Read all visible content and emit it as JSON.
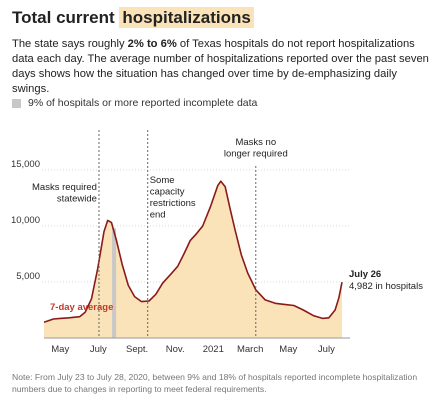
{
  "header": {
    "title_prefix": "Total current",
    "title_highlight": "hospitalizations",
    "desc_part1": "The state says roughly ",
    "desc_bold": "2% to 6%",
    "desc_part2": " of Texas hospitals do not report hospitalizations data each day. The average number of hospitalizations reported over the past seven days shows how the situation has changed over time by de-emphasizing daily swings."
  },
  "legend": {
    "label": "9% of hospitals or more reported incomplete data",
    "color": "#c8c8c8"
  },
  "note": "Note: From July 23 to July 28, 2020, between 9% and 18% of hospitals reported incomplete hospitalization numbers due to changes in reporting to meet federal requirements.",
  "colors": {
    "area_fill": "#fae3b8",
    "line": "#8b1a1a",
    "series_label": "#c0392b",
    "incomplete_band": "#c8c8c8"
  },
  "chart_data": {
    "type": "area",
    "series_name": "7-day average",
    "ylim": [
      0,
      15000
    ],
    "yticks": [
      5000,
      10000,
      15000
    ],
    "ytick_labels": [
      "5,000",
      "10,000",
      "15,000"
    ],
    "xticks": [
      {
        "label": "May",
        "x": "2020-05-01"
      },
      {
        "label": "July",
        "x": "2020-07-01"
      },
      {
        "label": "Sept.",
        "x": "2020-09-01"
      },
      {
        "label": "Nov.",
        "x": "2020-11-01"
      },
      {
        "label": "2021",
        "x": "2021-01-01"
      },
      {
        "label": "March",
        "x": "2021-03-01"
      },
      {
        "label": "May",
        "x": "2021-05-01"
      },
      {
        "label": "July",
        "x": "2021-07-01"
      }
    ],
    "x_range": [
      "2020-04-05",
      "2021-07-26"
    ],
    "incomplete_band": [
      "2020-07-23",
      "2020-07-28"
    ],
    "points": [
      [
        "2020-04-05",
        1400
      ],
      [
        "2020-04-20",
        1700
      ],
      [
        "2020-05-01",
        1750
      ],
      [
        "2020-05-15",
        1800
      ],
      [
        "2020-06-01",
        1900
      ],
      [
        "2020-06-10",
        2300
      ],
      [
        "2020-06-20",
        3500
      ],
      [
        "2020-06-30",
        6200
      ],
      [
        "2020-07-10",
        9500
      ],
      [
        "2020-07-16",
        10500
      ],
      [
        "2020-07-22",
        10300
      ],
      [
        "2020-07-30",
        8700
      ],
      [
        "2020-08-08",
        6600
      ],
      [
        "2020-08-18",
        4700
      ],
      [
        "2020-08-28",
        3700
      ],
      [
        "2020-09-08",
        3250
      ],
      [
        "2020-09-20",
        3300
      ],
      [
        "2020-10-01",
        3900
      ],
      [
        "2020-10-12",
        4900
      ],
      [
        "2020-10-25",
        5700
      ],
      [
        "2020-11-05",
        6400
      ],
      [
        "2020-11-15",
        7500
      ],
      [
        "2020-11-25",
        8700
      ],
      [
        "2020-12-05",
        9300
      ],
      [
        "2020-12-15",
        10000
      ],
      [
        "2020-12-28",
        11800
      ],
      [
        "2021-01-08",
        13600
      ],
      [
        "2021-01-13",
        14000
      ],
      [
        "2021-01-20",
        13500
      ],
      [
        "2021-01-28",
        11500
      ],
      [
        "2021-02-05",
        9600
      ],
      [
        "2021-02-15",
        7400
      ],
      [
        "2021-02-25",
        5800
      ],
      [
        "2021-03-10",
        4300
      ],
      [
        "2021-03-25",
        3400
      ],
      [
        "2021-04-10",
        3100
      ],
      [
        "2021-04-25",
        3000
      ],
      [
        "2021-05-10",
        2900
      ],
      [
        "2021-05-25",
        2500
      ],
      [
        "2021-06-10",
        2000
      ],
      [
        "2021-06-25",
        1750
      ],
      [
        "2021-07-05",
        1800
      ],
      [
        "2021-07-15",
        2500
      ],
      [
        "2021-07-21",
        3600
      ],
      [
        "2021-07-26",
        4982
      ]
    ],
    "annotations": [
      {
        "date": "2020-07-02",
        "lines": [
          "Masks required",
          "statewide"
        ],
        "anchor": "end"
      },
      {
        "date": "2020-09-18",
        "lines": [
          "Some",
          "capacity",
          "restrictions",
          "end"
        ],
        "anchor": "start"
      },
      {
        "date": "2021-03-10",
        "lines": [
          "Masks no",
          "longer required"
        ],
        "anchor": "middle"
      }
    ],
    "end_label": {
      "date": "July 26",
      "value": "4,982 in hospitals"
    }
  }
}
